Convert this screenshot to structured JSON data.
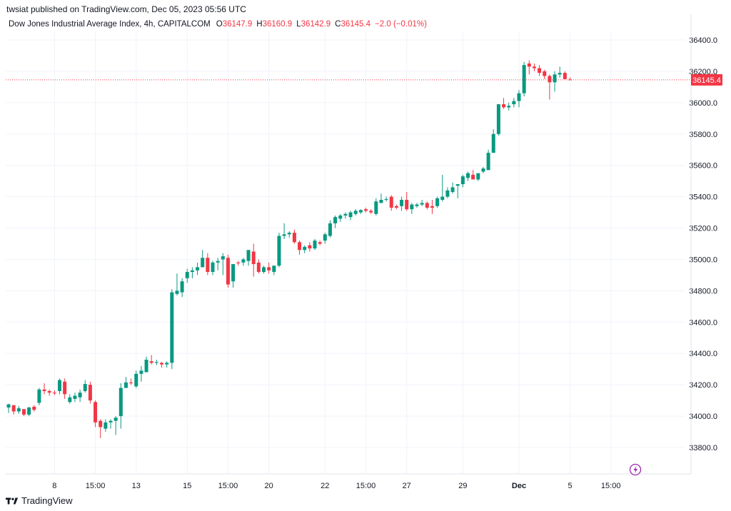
{
  "header": {
    "publish_line": "twsiat published on TradingView.com, Dec 05, 2023 05:56 UTC",
    "instrument": "Dow Jones Industrial Average Index, 4h, CAPITALCOM",
    "open_label": "O",
    "open_value": "36147.9",
    "high_label": "H",
    "high_value": "36160.9",
    "low_label": "L",
    "low_value": "36142.9",
    "close_label": "C",
    "close_value": "36145.4",
    "change_value": "−2.0 (−0.01%)"
  },
  "footer": {
    "brand": "TradingView",
    "logo_icon": "tradingview-logo-icon"
  },
  "colors": {
    "up": "#089981",
    "down": "#f23645",
    "grid": "#f0f3fa",
    "text": "#131722",
    "price_tag": "#f23645"
  },
  "chart_data": {
    "type": "candlestick",
    "timeframe": "4h",
    "ylim": [
      33650,
      36500
    ],
    "y_ticks": [
      33800,
      34000,
      34200,
      34400,
      34600,
      34800,
      35000,
      35200,
      35400,
      35600,
      35800,
      36000,
      36200,
      36400
    ],
    "y_tick_labels": [
      "33800.0",
      "34000.0",
      "34200.0",
      "34400.0",
      "34600.0",
      "34800.0",
      "35000.0",
      "35200.0",
      "35400.0",
      "35600.0",
      "35800.0",
      "36000.0",
      "36200.0",
      "36400.0"
    ],
    "x_ticks": [
      {
        "index": 9,
        "label": "8"
      },
      {
        "index": 17,
        "label": "15:00"
      },
      {
        "index": 25,
        "label": "13"
      },
      {
        "index": 35,
        "label": "15"
      },
      {
        "index": 43,
        "label": "15:00"
      },
      {
        "index": 51,
        "label": "20"
      },
      {
        "index": 62,
        "label": "22"
      },
      {
        "index": 70,
        "label": "15:00"
      },
      {
        "index": 78,
        "label": "27"
      },
      {
        "index": 89,
        "label": "29"
      },
      {
        "index": 100,
        "label": "Dec"
      },
      {
        "index": 110,
        "label": "5"
      },
      {
        "index": 118,
        "label": "15:00"
      }
    ],
    "last_price": 36145.4,
    "last_price_label": "36145.4",
    "grid": true,
    "candles": [
      [
        34055,
        34080,
        34020,
        34075
      ],
      [
        34070,
        34070,
        34010,
        34030
      ],
      [
        34030,
        34065,
        34015,
        34050
      ],
      [
        34045,
        34045,
        34000,
        34010
      ],
      [
        34010,
        34060,
        34000,
        34055
      ],
      [
        34060,
        34070,
        34030,
        34040
      ],
      [
        34085,
        34180,
        34070,
        34170
      ],
      [
        34170,
        34210,
        34140,
        34160
      ],
      [
        34160,
        34170,
        34130,
        34150
      ],
      [
        34150,
        34165,
        34135,
        34145
      ],
      [
        34160,
        34240,
        34140,
        34230
      ],
      [
        34220,
        34240,
        34110,
        34140
      ],
      [
        34090,
        34140,
        34080,
        34120
      ],
      [
        34110,
        34150,
        34090,
        34130
      ],
      [
        34120,
        34170,
        34090,
        34150
      ],
      [
        34160,
        34230,
        34150,
        34205
      ],
      [
        34200,
        34220,
        34080,
        34100
      ],
      [
        34090,
        34100,
        33930,
        33960
      ],
      [
        33970,
        33980,
        33860,
        33930
      ],
      [
        33920,
        33980,
        33900,
        33960
      ],
      [
        33960,
        33980,
        33920,
        33970
      ],
      [
        33970,
        34000,
        33880,
        33990
      ],
      [
        34000,
        34210,
        33920,
        34180
      ],
      [
        34180,
        34250,
        34180,
        34215
      ],
      [
        34215,
        34240,
        34200,
        34210
      ],
      [
        34190,
        34290,
        34180,
        34270
      ],
      [
        34270,
        34320,
        34220,
        34290
      ],
      [
        34280,
        34380,
        34280,
        34360
      ],
      [
        34350,
        34390,
        34330,
        34340
      ],
      [
        34340,
        34360,
        34325,
        34345
      ],
      [
        34340,
        34345,
        34310,
        34330
      ],
      [
        34330,
        34350,
        34310,
        34340
      ],
      [
        34340,
        34810,
        34300,
        34790
      ],
      [
        34780,
        34910,
        34770,
        34800
      ],
      [
        34790,
        34880,
        34760,
        34860
      ],
      [
        34880,
        34940,
        34850,
        34920
      ],
      [
        34920,
        34950,
        34880,
        34930
      ],
      [
        34930,
        34980,
        34900,
        34950
      ],
      [
        34950,
        35060,
        34950,
        35010
      ],
      [
        35010,
        35040,
        34900,
        34920
      ],
      [
        34920,
        34990,
        34900,
        34980
      ],
      [
        34980,
        35010,
        34930,
        34990
      ],
      [
        35000,
        35040,
        34900,
        35020
      ],
      [
        35010,
        35030,
        34820,
        34840
      ],
      [
        34860,
        34950,
        34820,
        34970
      ],
      [
        34980,
        34990,
        34960,
        34975
      ],
      [
        34980,
        35010,
        34960,
        35000
      ],
      [
        34990,
        35060,
        34960,
        35060
      ],
      [
        35050,
        35100,
        34890,
        34970
      ],
      [
        34980,
        35000,
        34910,
        34920
      ],
      [
        34920,
        34960,
        34910,
        34950
      ],
      [
        34950,
        34980,
        34910,
        34930
      ],
      [
        34920,
        34960,
        34900,
        34960
      ],
      [
        34960,
        35170,
        34950,
        35150
      ],
      [
        35150,
        35230,
        35130,
        35160
      ],
      [
        35160,
        35180,
        35140,
        35170
      ],
      [
        35170,
        35190,
        35100,
        35110
      ],
      [
        35110,
        35120,
        35030,
        35060
      ],
      [
        35060,
        35090,
        35040,
        35080
      ],
      [
        35090,
        35110,
        35050,
        35070
      ],
      [
        35070,
        35130,
        35060,
        35120
      ],
      [
        35110,
        35120,
        35090,
        35100
      ],
      [
        35120,
        35170,
        35100,
        35160
      ],
      [
        35150,
        35250,
        35140,
        35230
      ],
      [
        35230,
        35280,
        35200,
        35270
      ],
      [
        35260,
        35290,
        35240,
        35280
      ],
      [
        35280,
        35300,
        35260,
        35290
      ],
      [
        35270,
        35310,
        35250,
        35300
      ],
      [
        35290,
        35320,
        35280,
        35310
      ],
      [
        35300,
        35320,
        35290,
        35315
      ],
      [
        35320,
        35330,
        35300,
        35310
      ],
      [
        35310,
        35320,
        35290,
        35300
      ],
      [
        35290,
        35390,
        35280,
        35370
      ],
      [
        35360,
        35420,
        35360,
        35380
      ],
      [
        35380,
        35400,
        35370,
        35385
      ],
      [
        35400,
        35410,
        35310,
        35330
      ],
      [
        35340,
        35350,
        35320,
        35330
      ],
      [
        35340,
        35400,
        35310,
        35380
      ],
      [
        35380,
        35430,
        35310,
        35320
      ],
      [
        35320,
        35360,
        35290,
        35350
      ],
      [
        35340,
        35360,
        35330,
        35350
      ],
      [
        35350,
        35380,
        35340,
        35360
      ],
      [
        35360,
        35370,
        35320,
        35330
      ],
      [
        35340,
        35380,
        35290,
        35330
      ],
      [
        35340,
        35400,
        35330,
        35390
      ],
      [
        35380,
        35540,
        35370,
        35400
      ],
      [
        35400,
        35460,
        35390,
        35440
      ],
      [
        35430,
        35490,
        35420,
        35460
      ],
      [
        35470,
        35480,
        35390,
        35480
      ],
      [
        35480,
        35540,
        35460,
        35530
      ],
      [
        35520,
        35560,
        35500,
        35550
      ],
      [
        35540,
        35570,
        35510,
        35510
      ],
      [
        35510,
        35550,
        35500,
        35550
      ],
      [
        35560,
        35590,
        35550,
        35580
      ],
      [
        35570,
        35700,
        35570,
        35680
      ],
      [
        35680,
        35830,
        35680,
        35800
      ],
      [
        35800,
        35990,
        35790,
        35990
      ],
      [
        35990,
        36030,
        35960,
        35970
      ],
      [
        35970,
        36000,
        35950,
        35980
      ],
      [
        35990,
        36030,
        35970,
        36010
      ],
      [
        36010,
        36080,
        35970,
        36060
      ],
      [
        36060,
        36260,
        36040,
        36240
      ],
      [
        36250,
        36270,
        36180,
        36230
      ],
      [
        36230,
        36250,
        36200,
        36220
      ],
      [
        36220,
        36240,
        36170,
        36190
      ],
      [
        36200,
        36210,
        36150,
        36170
      ],
      [
        36170,
        36180,
        36020,
        36130
      ],
      [
        36130,
        36200,
        36070,
        36180
      ],
      [
        36180,
        36230,
        36160,
        36190
      ],
      [
        36190,
        36200,
        36150,
        36150
      ],
      [
        36147.9,
        36160.9,
        36142.9,
        36145.4
      ]
    ]
  }
}
